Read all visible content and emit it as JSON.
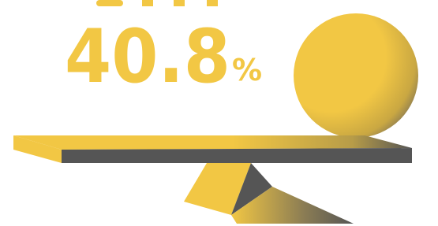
{
  "stat": {
    "value": "40.8",
    "unit": "%"
  }
}
